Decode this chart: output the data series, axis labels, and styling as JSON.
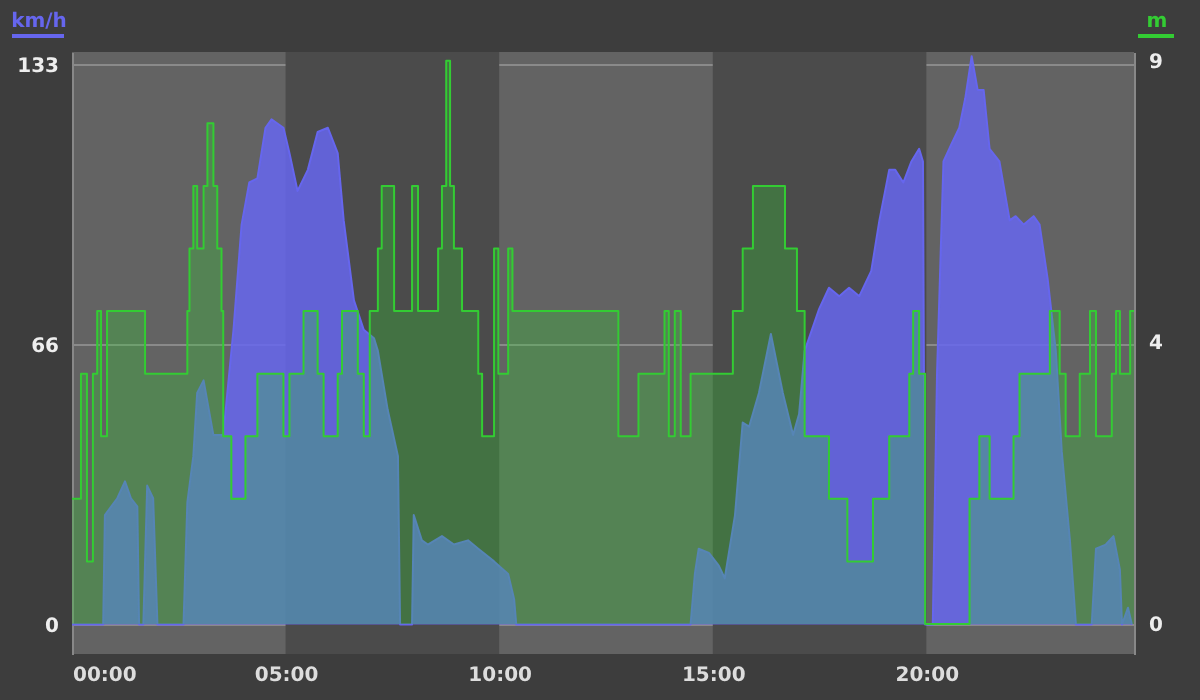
{
  "chart_data": {
    "type": "area",
    "xlim": [
      0,
      24.86
    ],
    "xticks": [
      {
        "value": 0,
        "label": "00:00"
      },
      {
        "value": 5,
        "label": "05:00"
      },
      {
        "value": 10,
        "label": "10:00"
      },
      {
        "value": 15,
        "label": "15:00"
      },
      {
        "value": 20,
        "label": "20:00"
      }
    ],
    "ylim": [
      -7,
      136
    ],
    "yticks": [
      0,
      {
        "value": 66.5,
        "label": "66"
      },
      133
    ],
    "y2lim": [
      -0.48,
      9.14
    ],
    "y2ticks": [
      0,
      {
        "value": 4.5,
        "label": "4"
      },
      9
    ],
    "grid": "y",
    "bands": [
      {
        "axis": "x",
        "from": 5,
        "to": 10,
        "color": "#4b4b4b"
      },
      {
        "axis": "x",
        "from": 15,
        "to": 20,
        "color": "#4b4b4b"
      }
    ],
    "series": [
      {
        "name": "km/h",
        "color": "#6666ee",
        "type": "area",
        "x": [
          0,
          0.73,
          0.77,
          1.06,
          1.24,
          1.38,
          1.53,
          1.57,
          1.67,
          1.76,
          1.9,
          2.0,
          2.61,
          2.7,
          2.84,
          2.93,
          3.08,
          3.31,
          3.54,
          3.78,
          3.97,
          4.15,
          4.34,
          4.53,
          4.67,
          4.95,
          5.09,
          5.28,
          5.52,
          5.75,
          5.99,
          6.22,
          6.36,
          6.6,
          6.83,
          7.07,
          7.16,
          7.39,
          7.63,
          7.68,
          7.96,
          8.0,
          8.19,
          8.33,
          8.66,
          8.94,
          9.27,
          9.51,
          9.88,
          10.21,
          10.35,
          10.4,
          14.48,
          14.58,
          14.67,
          14.91,
          15.14,
          15.28,
          15.52,
          15.7,
          15.85,
          16.08,
          16.36,
          16.64,
          16.88,
          17.02,
          17.15,
          17.49,
          17.72,
          17.96,
          18.19,
          18.43,
          18.71,
          18.9,
          19.13,
          19.27,
          19.46,
          19.65,
          19.83,
          19.92,
          19.97,
          20.15,
          20.25,
          20.4,
          20.58,
          20.77,
          20.91,
          21.06,
          21.2,
          21.34,
          21.48,
          21.71,
          21.95,
          22.09,
          22.28,
          22.51,
          22.65,
          22.84,
          23.03,
          23.17,
          23.36,
          23.5,
          23.87,
          23.97,
          24.2,
          24.38,
          24.53,
          24.58,
          24.72,
          24.81
        ],
        "values": [
          0,
          0,
          26,
          30,
          34,
          30,
          28,
          0,
          0,
          33,
          30,
          0,
          0,
          29,
          40,
          55,
          58,
          45,
          45,
          70,
          95,
          105,
          106,
          118,
          120,
          118,
          112,
          103,
          108,
          117,
          118,
          112,
          96,
          77,
          70,
          68,
          65,
          51,
          40,
          0,
          0,
          26,
          20,
          19,
          21,
          19,
          20,
          18,
          15,
          12,
          6,
          0,
          0,
          12,
          18,
          17,
          14,
          11,
          26,
          48,
          47,
          55,
          69,
          55,
          45,
          50,
          65,
          75,
          80,
          78,
          80,
          78,
          84,
          96,
          108,
          108,
          105,
          110,
          113,
          110,
          0,
          0,
          60,
          110,
          114,
          118,
          125,
          135,
          127,
          127,
          113,
          110,
          96,
          97,
          95,
          97,
          95,
          82,
          65,
          41,
          20,
          0,
          0,
          18,
          19,
          21,
          13,
          0,
          4,
          0
        ]
      },
      {
        "name": "m",
        "color": "#33cc33",
        "type": "step",
        "axis": "y2",
        "x": [
          0,
          0.21,
          0.35,
          0.49,
          0.59,
          0.68,
          0.82,
          1.71,
          2.7,
          2.75,
          2.84,
          2.93,
          3.08,
          3.17,
          3.31,
          3.4,
          3.5,
          3.54,
          3.73,
          4.06,
          4.34,
          4.95,
          5.09,
          5.42,
          5.75,
          5.89,
          6.22,
          6.32,
          6.69,
          6.83,
          6.97,
          7.16,
          7.25,
          7.54,
          7.96,
          8.1,
          8.57,
          8.66,
          8.76,
          8.85,
          8.94,
          9.13,
          9.51,
          9.6,
          9.88,
          9.98,
          10.21,
          10.31,
          12.79,
          13.26,
          13.87,
          13.97,
          14.11,
          14.25,
          14.48,
          15.47,
          15.7,
          15.94,
          16.69,
          16.97,
          17.15,
          17.72,
          18.15,
          18.75,
          19.13,
          19.6,
          19.69,
          19.83,
          19.97,
          21.01,
          21.24,
          21.48,
          22.04,
          22.18,
          22.89,
          23.12,
          23.26,
          23.59,
          23.83,
          23.97,
          24.34,
          24.44,
          24.53,
          24.77,
          24.86
        ],
        "values": [
          2,
          4,
          1,
          4,
          5,
          3,
          5,
          4,
          5,
          6,
          7,
          6,
          7,
          8,
          7,
          6,
          5,
          3,
          2,
          3,
          4,
          3,
          4,
          5,
          4,
          3,
          4,
          5,
          4,
          3,
          5,
          6,
          7,
          5,
          7,
          5,
          6,
          7,
          9,
          7,
          6,
          5,
          4,
          3,
          6,
          4,
          6,
          5,
          3,
          4,
          5,
          3,
          5,
          3,
          4,
          5,
          6,
          7,
          6,
          5,
          3,
          2,
          1,
          2,
          3,
          4,
          5,
          4,
          0,
          2,
          3,
          2,
          3,
          4,
          5,
          4,
          3,
          4,
          5,
          3,
          4,
          5,
          4,
          5,
          5
        ]
      }
    ]
  }
}
